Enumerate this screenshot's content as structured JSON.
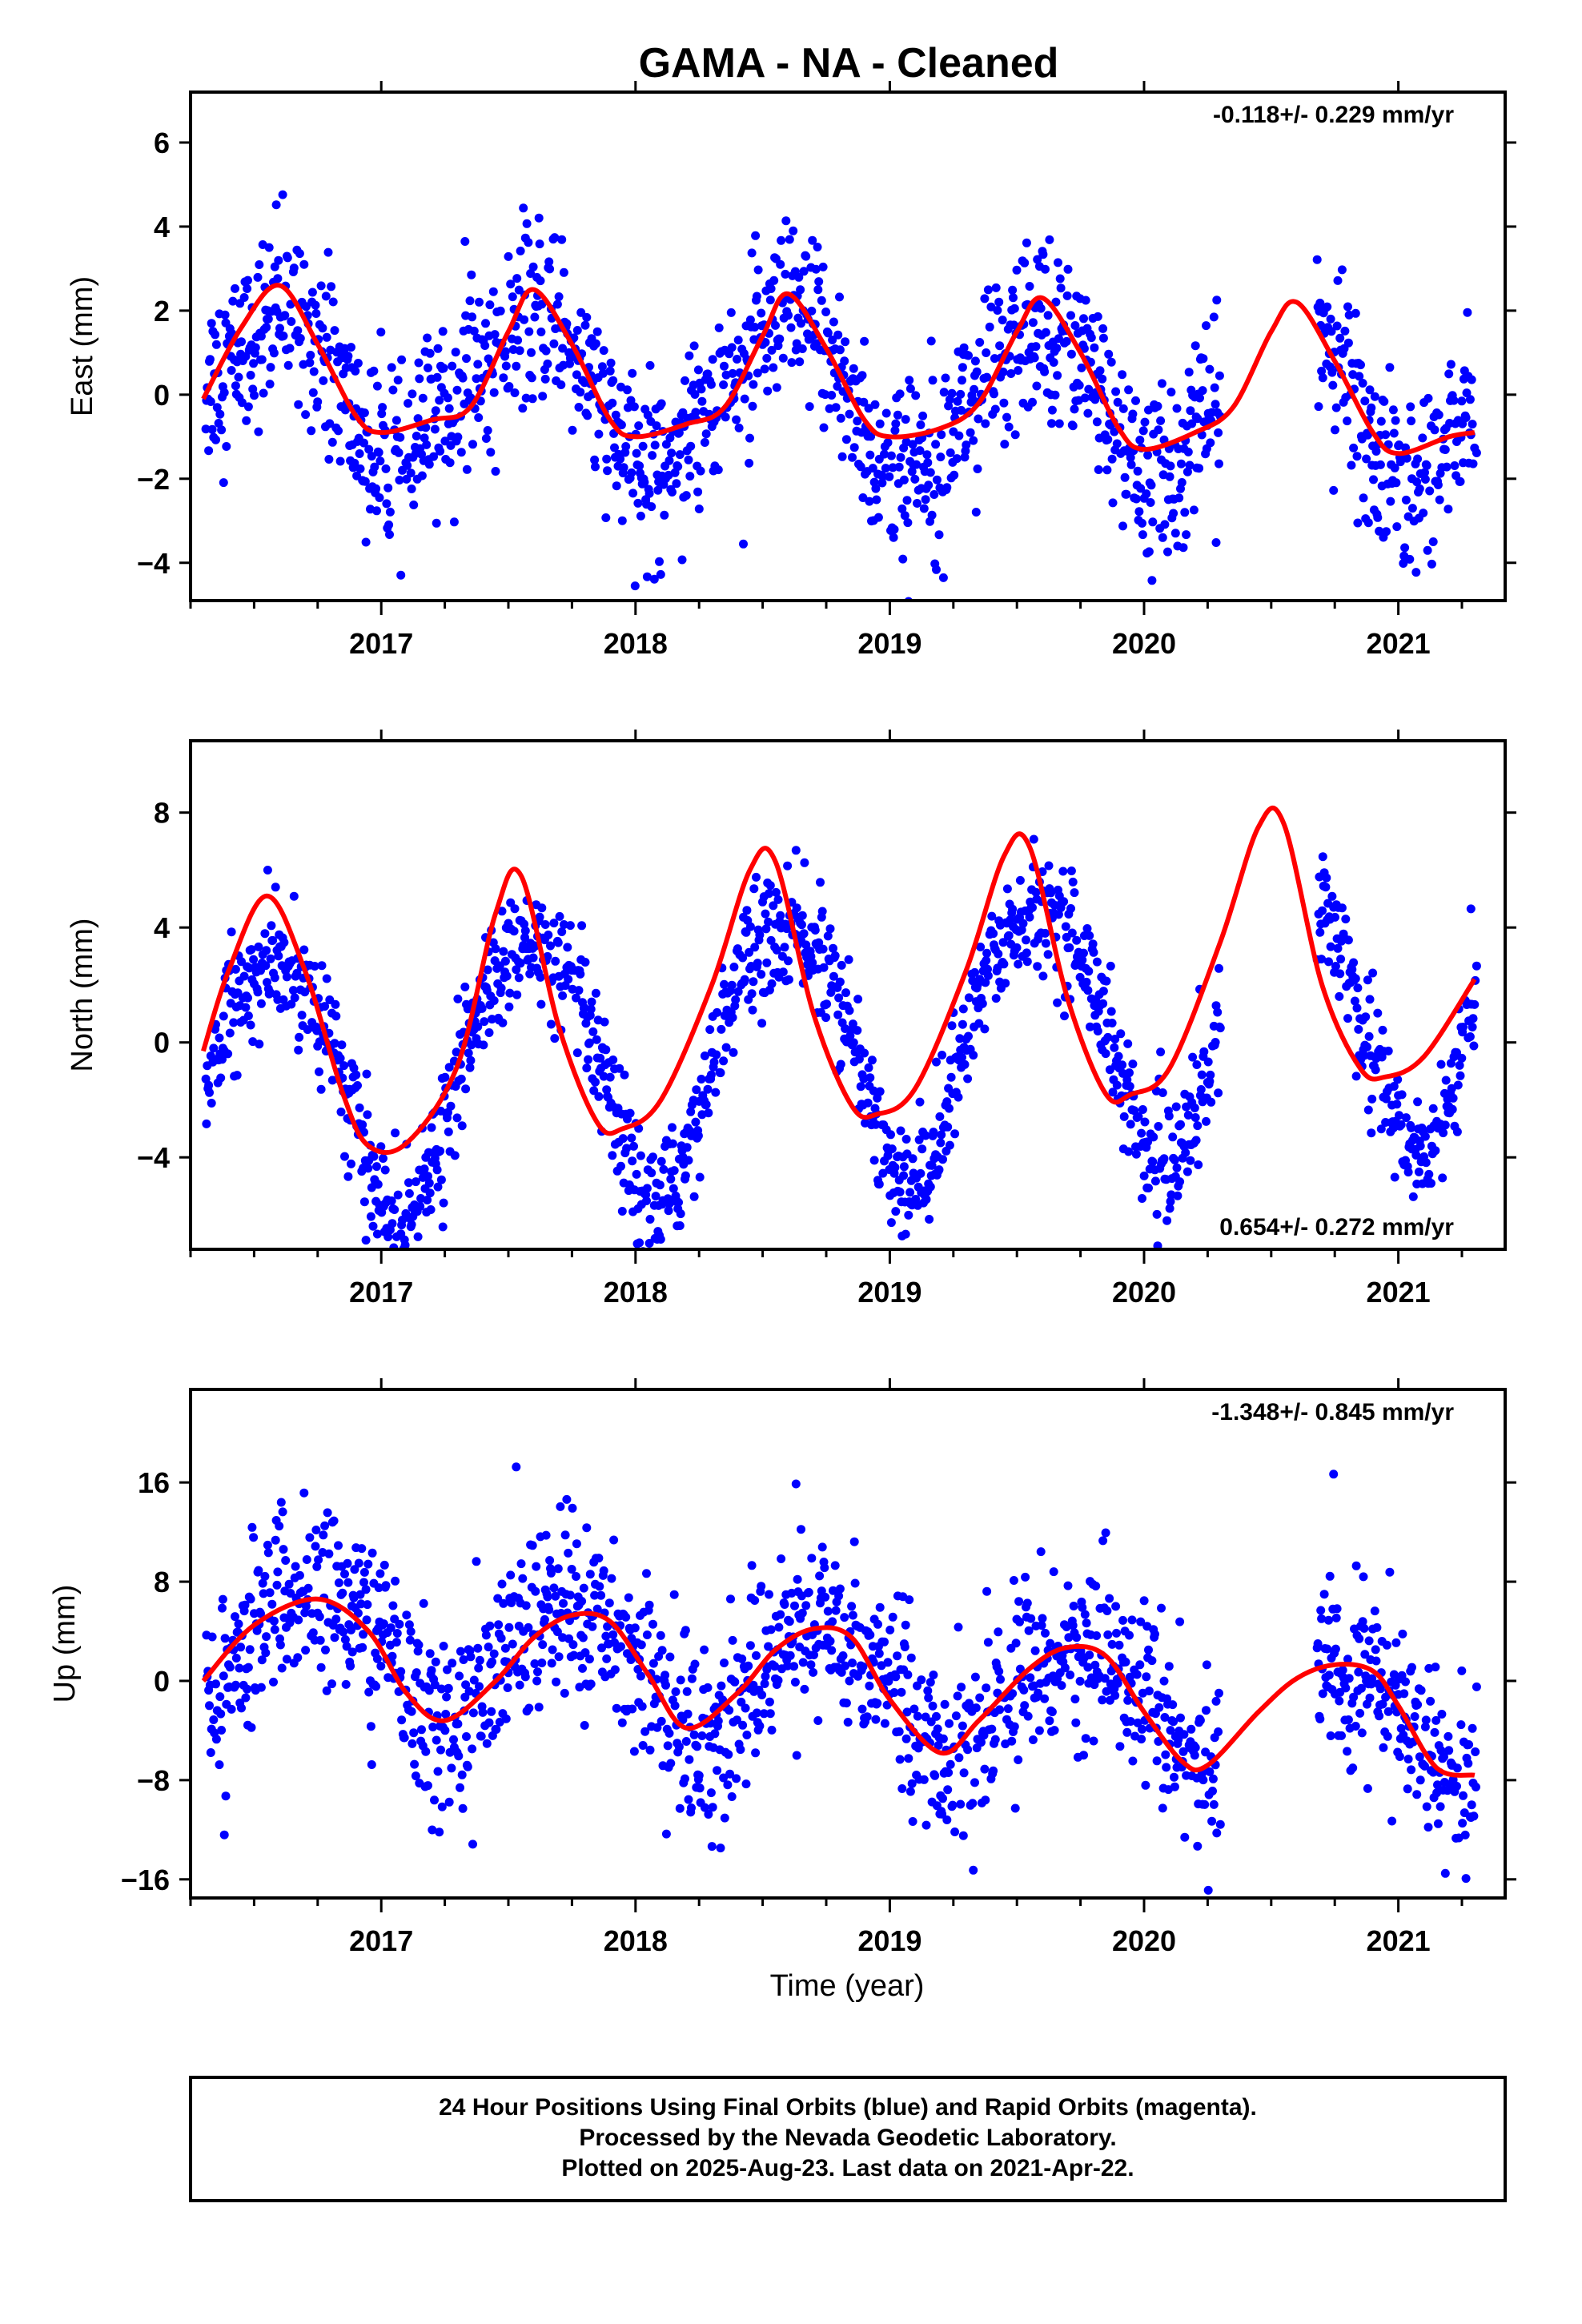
{
  "chart_data": {
    "title": "GAMA  - NA - Cleaned",
    "type": "scatter",
    "xlim": [
      2016.25,
      2021.42
    ],
    "xticks": [
      2017,
      2018,
      2019,
      2020,
      2021
    ],
    "xlabel": "Time (year)",
    "colors": {
      "points": "#0000ff",
      "model": "#ff0000"
    },
    "panels": [
      {
        "name": "east",
        "ylabel": "East (mm)",
        "ylim": [
          -4.9,
          7.2
        ],
        "yticks": [
          -4,
          -2,
          0,
          2,
          4,
          6
        ],
        "ytick_labels": [
          "−4",
          "−2",
          "0",
          "2",
          "4",
          "6"
        ],
        "rate": "-0.118+/- 0.229 mm/yr",
        "rate_position": "top-right",
        "model_x": [
          2016.3,
          2016.45,
          2016.6,
          2016.75,
          2016.9,
          2017.0,
          2017.2,
          2017.35,
          2017.5,
          2017.6,
          2017.75,
          2017.9,
          2018.0,
          2018.2,
          2018.35,
          2018.5,
          2018.6,
          2018.75,
          2018.9,
          2019.0,
          2019.2,
          2019.35,
          2019.5,
          2019.6,
          2019.75,
          2019.9,
          2020.0,
          2020.2,
          2020.35,
          2020.5,
          2020.6,
          2020.75,
          2020.9,
          2021.0,
          2021.2,
          2021.3
        ],
        "model_y": [
          -0.1,
          1.6,
          2.6,
          1.2,
          -0.5,
          -0.9,
          -0.6,
          -0.3,
          1.5,
          2.5,
          1.2,
          -0.6,
          -1.0,
          -0.7,
          -0.3,
          1.4,
          2.4,
          1.1,
          -0.6,
          -1.0,
          -0.8,
          -0.2,
          1.5,
          2.3,
          1.0,
          -0.8,
          -1.3,
          -0.9,
          -0.3,
          1.5,
          2.2,
          0.8,
          -0.9,
          -1.4,
          -1.0,
          -0.9
        ],
        "seasonal": {
          "amp1": 1.7,
          "phase1": 0.58,
          "amp2": 0.4,
          "phase2": 0.1,
          "trend": -0.118,
          "noise": 1.05
        }
      },
      {
        "name": "north",
        "ylabel": "North (mm)",
        "ylim": [
          -7.2,
          10.5
        ],
        "yticks": [
          -4,
          0,
          4,
          8
        ],
        "ytick_labels": [
          "−4",
          "0",
          "4",
          "8"
        ],
        "rate": "0.654+/- 0.272 mm/yr",
        "rate_position": "bottom-right",
        "model_x": [
          2016.3,
          2016.4,
          2016.55,
          2016.7,
          2016.85,
          2016.95,
          2017.1,
          2017.3,
          2017.45,
          2017.55,
          2017.7,
          2017.85,
          2017.95,
          2018.1,
          2018.3,
          2018.45,
          2018.55,
          2018.7,
          2018.85,
          2018.95,
          2019.1,
          2019.3,
          2019.45,
          2019.55,
          2019.7,
          2019.85,
          2019.95,
          2020.1,
          2020.3,
          2020.45,
          2020.55,
          2020.7,
          2020.85,
          2020.95,
          2021.1,
          2021.3
        ],
        "model_y": [
          -0.3,
          2.5,
          5.1,
          2.5,
          -1.8,
          -3.6,
          -3.5,
          -0.8,
          4.5,
          5.8,
          0.5,
          -2.8,
          -3.0,
          -2.0,
          2.0,
          6.0,
          6.3,
          1.0,
          -2.2,
          -2.5,
          -1.6,
          2.5,
          6.5,
          6.8,
          1.5,
          -1.8,
          -1.8,
          -0.9,
          3.5,
          7.5,
          7.6,
          2.0,
          -0.9,
          -1.2,
          -0.5,
          2.2
        ],
        "seasonal": {
          "amp1": 4.6,
          "phase1": 0.58,
          "amp2": 0.6,
          "phase2": 0.2,
          "trend": 0.654,
          "noise": 1.05
        }
      },
      {
        "name": "up",
        "ylabel": "Up (mm)",
        "ylim": [
          -17.5,
          23.5
        ],
        "yticks": [
          -16,
          -8,
          0,
          8,
          16
        ],
        "ytick_labels": [
          "−16",
          "−8",
          "0",
          "8",
          "16"
        ],
        "rate": "-1.348+/- 0.845 mm/yr",
        "rate_position": "top-right",
        "model_x": [
          2016.3,
          2016.5,
          2016.75,
          2016.95,
          2017.1,
          2017.25,
          2017.45,
          2017.6,
          2017.75,
          2017.9,
          2018.05,
          2018.2,
          2018.4,
          2018.55,
          2018.7,
          2018.85,
          2019.0,
          2019.2,
          2019.35,
          2019.55,
          2019.7,
          2019.85,
          2020.0,
          2020.15,
          2020.25,
          2020.45,
          2020.6,
          2020.75,
          2020.9,
          2021.0,
          2021.15,
          2021.3
        ],
        "model_y": [
          0.0,
          4.5,
          6.6,
          4.0,
          -1.0,
          -3.2,
          0.0,
          3.5,
          5.3,
          4.8,
          0.5,
          -3.8,
          -1.0,
          2.5,
          4.2,
          3.5,
          -1.5,
          -5.8,
          -3.2,
          1.0,
          2.7,
          2.0,
          -2.5,
          -6.5,
          -6.8,
          -2.5,
          0.2,
          1.3,
          0.8,
          -2.0,
          -7.0,
          -7.6
        ],
        "seasonal": {
          "amp1": 4.8,
          "phase1": 0.75,
          "amp2": 1.0,
          "phase2": 0.4,
          "trend": -1.348,
          "noise": 3.6
        }
      }
    ],
    "data_gap": [
      2020.3,
      2020.68
    ],
    "last_point_x": 2021.31
  },
  "footer": {
    "line1": "24 Hour Positions Using Final Orbits (blue) and Rapid Orbits (magenta).",
    "line2": "Processed by the Nevada Geodetic Laboratory.",
    "line3": "Plotted on 2025-Aug-23. Last data on 2021-Apr-22."
  }
}
